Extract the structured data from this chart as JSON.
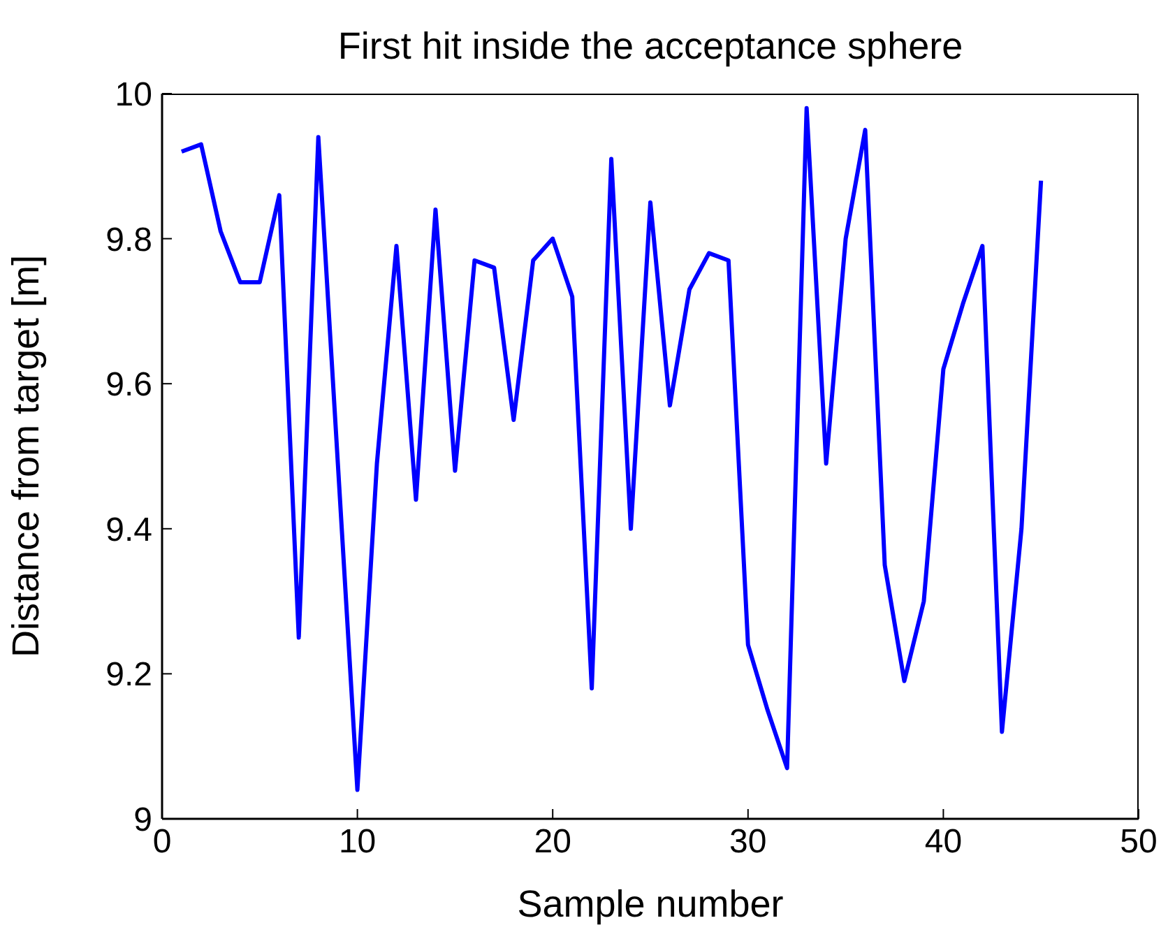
{
  "chart_data": {
    "type": "line",
    "title": "First hit inside the acceptance sphere",
    "xlabel": "Sample number",
    "ylabel": "Distance from target [m]",
    "x": [
      1,
      2,
      3,
      4,
      5,
      6,
      7,
      8,
      9,
      10,
      11,
      12,
      13,
      14,
      15,
      16,
      17,
      18,
      19,
      20,
      21,
      22,
      23,
      24,
      25,
      26,
      27,
      28,
      29,
      30,
      31,
      32,
      33,
      34,
      35,
      36,
      37,
      38,
      39,
      40,
      41,
      42,
      43,
      44,
      45
    ],
    "series": [
      {
        "color": "#0000ff",
        "values": [
          9.92,
          9.93,
          9.81,
          9.74,
          9.74,
          9.86,
          9.25,
          9.94,
          9.49,
          9.04,
          9.49,
          9.79,
          9.44,
          9.84,
          9.48,
          9.77,
          9.76,
          9.55,
          9.77,
          9.8,
          9.72,
          9.18,
          9.91,
          9.4,
          9.85,
          9.57,
          9.73,
          9.78,
          9.77,
          9.24,
          9.15,
          9.07,
          9.98,
          9.49,
          9.8,
          9.95,
          9.35,
          9.19,
          9.3,
          9.62,
          9.71,
          9.79,
          9.12,
          9.4,
          9.88
        ]
      }
    ],
    "xlim": [
      0,
      50
    ],
    "xticks": [
      0,
      10,
      20,
      30,
      40,
      50
    ],
    "ylim": [
      9,
      10
    ],
    "yticks": [
      9,
      9.2,
      9.4,
      9.6,
      9.8,
      10
    ],
    "grid": false,
    "legend": false,
    "marker": "none",
    "line_style": "solid"
  }
}
